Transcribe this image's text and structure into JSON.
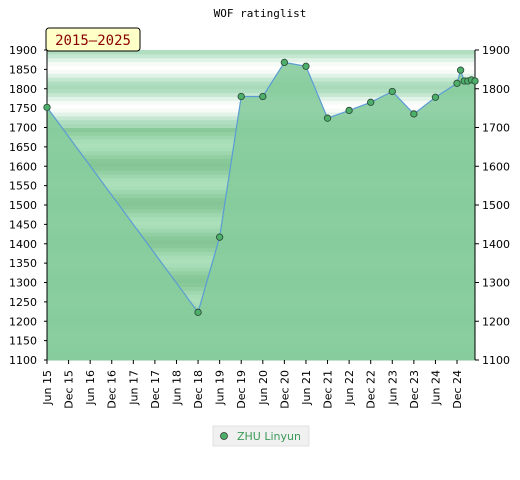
{
  "chart_data": {
    "type": "line",
    "title": "WOF ratinglist",
    "badge": "2015–2025",
    "xlabel": "",
    "ylabel": "",
    "ylim": [
      1100,
      1900
    ],
    "y_ticks": [
      1100,
      1150,
      1200,
      1250,
      1300,
      1350,
      1400,
      1450,
      1500,
      1550,
      1600,
      1650,
      1700,
      1750,
      1800,
      1850,
      1900
    ],
    "y_ticks_right": [
      1100,
      1200,
      1300,
      1400,
      1500,
      1600,
      1700,
      1800,
      1900
    ],
    "x_tick_labels": [
      "Jun 15",
      "Dec 15",
      "Jun 16",
      "Dec 16",
      "Jun 17",
      "Dec 17",
      "Jun 18",
      "Dec 18",
      "Jun 19",
      "Dec 19",
      "Jun 20",
      "Dec 20",
      "Jun 21",
      "Dec 21",
      "Jun 22",
      "Dec 22",
      "Jun 23",
      "Dec 23",
      "Jun 24",
      "Dec 24"
    ],
    "grid": false,
    "legend_position": "bottom-center",
    "series": [
      {
        "name": "ZHU Linyun",
        "color": "#5b9bd5",
        "marker_color": "#4caf6a",
        "points": [
          {
            "x": "Jun 15",
            "y": 1752
          },
          {
            "x": "Dec 18",
            "y": 1223
          },
          {
            "x": "Jun 19",
            "y": 1417
          },
          {
            "x": "Dec 19",
            "y": 1780
          },
          {
            "x": "Jun 20",
            "y": 1780
          },
          {
            "x": "Dec 20",
            "y": 1868
          },
          {
            "x": "Jun 21",
            "y": 1858
          },
          {
            "x": "Dec 21",
            "y": 1724
          },
          {
            "x": "Jun 22",
            "y": 1744
          },
          {
            "x": "Dec 22",
            "y": 1765
          },
          {
            "x": "Jun 23",
            "y": 1793
          },
          {
            "x": "Dec 23",
            "y": 1735
          },
          {
            "x": "Jun 24",
            "y": 1778
          },
          {
            "x": "Dec 24",
            "y": 1814
          },
          {
            "x": "Jan 25",
            "y": 1848
          },
          {
            "x": "Feb 25",
            "y": 1820
          },
          {
            "x": "Mar 25",
            "y": 1820
          },
          {
            "x": "Apr 25",
            "y": 1823
          },
          {
            "x": "May 25",
            "y": 1820
          }
        ]
      }
    ]
  }
}
